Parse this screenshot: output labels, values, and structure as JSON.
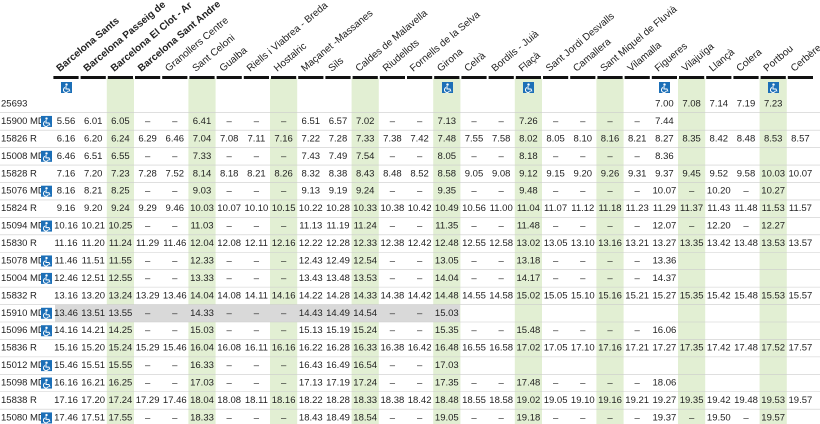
{
  "stations": [
    "Barcelona Sants",
    "Barcelona Passeig de",
    "Barcelona El Clot - Ar",
    "Barcelona Sant Andre",
    "Granollers Centre",
    "Sant Celoni",
    "Gualba",
    "Riells i Viabrea - Breda",
    "Hostalric",
    "Maçanet -Massanes",
    "Sils",
    "Caldes de Malavella",
    "Riudellots",
    "Fornells de la Selva",
    "Girona",
    "Celrà",
    "Bordils - Juià",
    "Flaçà",
    "Sant Jordi Desvalls",
    "Camallera",
    "Sant Miquel de Fluvià",
    "Vilamalla",
    "Figueres",
    "Vilajuïga",
    "Llançà",
    "Colera",
    "Portbou",
    "Cerbère"
  ],
  "trains": [
    {
      "train": "25693",
      "times": [
        null,
        null,
        null,
        null,
        null,
        null,
        null,
        null,
        null,
        null,
        null,
        null,
        null,
        null,
        null,
        null,
        null,
        null,
        null,
        null,
        null,
        null,
        "7.00",
        "7.08",
        "7.14",
        "7.19",
        "7.23",
        null
      ]
    },
    {
      "train": "15900",
      "type": "MD",
      "accessible": true,
      "times": [
        "5.56",
        "6.01",
        "6.05",
        "–",
        "–",
        "6.41",
        "–",
        "–",
        "–",
        "6.51",
        "6.57",
        "7.02",
        "–",
        "–",
        "7.13",
        "–",
        "–",
        "7.26",
        "–",
        "–",
        "–",
        "–",
        "7.44",
        null,
        null,
        null,
        null,
        null
      ]
    },
    {
      "train": "15826",
      "type": "R",
      "times": [
        "6.16",
        "6.20",
        "6.24",
        "6.29",
        "6.46",
        "7.04",
        "7.08",
        "7.11",
        "7.16",
        "7.22",
        "7.28",
        "7.33",
        "7.38",
        "7.42",
        "7.48",
        "7.55",
        "7.58",
        "8.02",
        "8.05",
        "8.10",
        "8.16",
        "8.21",
        "8.27",
        "8.35",
        "8.42",
        "8.48",
        "8.53",
        "8.57"
      ]
    },
    {
      "train": "15008",
      "type": "MD",
      "accessible": true,
      "times": [
        "6.46",
        "6.51",
        "6.55",
        "–",
        "–",
        "7.33",
        "–",
        "–",
        "–",
        "7.43",
        "7.49",
        "7.54",
        "–",
        "–",
        "8.05",
        "–",
        "–",
        "8.18",
        "–",
        "–",
        "–",
        "–",
        "8.36",
        null,
        null,
        null,
        null,
        null
      ]
    },
    {
      "train": "15828",
      "type": "R",
      "times": [
        "7.16",
        "7.20",
        "7.23",
        "7.28",
        "7.52",
        "8.14",
        "8.18",
        "8.21",
        "8.26",
        "8.32",
        "8.38",
        "8.43",
        "8.48",
        "8.52",
        "8.58",
        "9.05",
        "9.08",
        "9.12",
        "9.15",
        "9.20",
        "9.26",
        "9.31",
        "9.37",
        "9.45",
        "9.52",
        "9.58",
        "10.03",
        "10.07"
      ]
    },
    {
      "train": "15076",
      "type": "MD",
      "accessible": true,
      "times": [
        "8.16",
        "8.21",
        "8.25",
        "–",
        "–",
        "9.03",
        "–",
        "–",
        "–",
        "9.13",
        "9.19",
        "9.24",
        "–",
        "–",
        "9.35",
        "–",
        "–",
        "9.48",
        "–",
        "–",
        "–",
        "–",
        "10.07",
        "–",
        "10.20",
        "–",
        "10.27",
        null
      ]
    },
    {
      "train": "15824",
      "type": "R",
      "times": [
        "9.16",
        "9.20",
        "9.24",
        "9.29",
        "9.46",
        "10.03",
        "10.07",
        "10.10",
        "10.15",
        "10.22",
        "10.28",
        "10.33",
        "10.38",
        "10.42",
        "10.49",
        "10.56",
        "11.00",
        "11.04",
        "11.07",
        "11.12",
        "11.18",
        "11.23",
        "11.29",
        "11.37",
        "11.43",
        "11.48",
        "11.53",
        "11.57"
      ]
    },
    {
      "train": "15094",
      "type": "MD",
      "accessible": true,
      "times": [
        "10.16",
        "10.21",
        "10.25",
        "–",
        "–",
        "11.03",
        "–",
        "–",
        "–",
        "11.13",
        "11.19",
        "11.24",
        "–",
        "–",
        "11.35",
        "–",
        "–",
        "11.48",
        "–",
        "–",
        "–",
        "–",
        "12.07",
        "–",
        "12.20",
        "–",
        "12.27",
        null
      ]
    },
    {
      "train": "15830",
      "type": "R",
      "times": [
        "11.16",
        "11.20",
        "11.24",
        "11.29",
        "11.46",
        "12.04",
        "12.08",
        "12.11",
        "12.16",
        "12.22",
        "12.28",
        "12.33",
        "12.38",
        "12.42",
        "12.48",
        "12.55",
        "12.58",
        "13.02",
        "13.05",
        "13.10",
        "13.16",
        "13.21",
        "13.27",
        "13.35",
        "13.42",
        "13.48",
        "13.53",
        "13.57"
      ]
    },
    {
      "train": "15078",
      "type": "MD",
      "accessible": true,
      "times": [
        "11.46",
        "11.51",
        "11.55",
        "–",
        "–",
        "12.33",
        "–",
        "–",
        "–",
        "12.43",
        "12.49",
        "12.54",
        "–",
        "–",
        "13.05",
        "–",
        "–",
        "13.18",
        "–",
        "–",
        "–",
        "–",
        "13.36",
        null,
        null,
        null,
        null,
        null
      ]
    },
    {
      "train": "15004",
      "type": "MD",
      "accessible": true,
      "times": [
        "12.46",
        "12.51",
        "12.55",
        "–",
        "–",
        "13.33",
        "–",
        "–",
        "–",
        "13.43",
        "13.48",
        "13.53",
        "–",
        "–",
        "14.04",
        "–",
        "–",
        "14.17",
        "–",
        "–",
        "–",
        "–",
        "14.37",
        null,
        null,
        null,
        null,
        null
      ]
    },
    {
      "train": "15832",
      "type": "R",
      "times": [
        "13.16",
        "13.20",
        "13.24",
        "13.29",
        "13.46",
        "14.04",
        "14.08",
        "14.11",
        "14.16",
        "14.22",
        "14.28",
        "14.33",
        "14.38",
        "14.42",
        "14.48",
        "14.55",
        "14.58",
        "15.02",
        "15.05",
        "15.10",
        "15.16",
        "15.21",
        "15.27",
        "15.35",
        "15.42",
        "15.48",
        "15.53",
        "15.57"
      ]
    },
    {
      "train": "15910",
      "type": "MD",
      "accessible": true,
      "times": [
        "13.46",
        "13.51",
        "13.55",
        "–",
        "–",
        "14.33",
        "–",
        "–",
        "–",
        "14.43",
        "14.49",
        "14.54",
        "–",
        "–",
        "15.03",
        null,
        null,
        null,
        null,
        null,
        null,
        null,
        null,
        null,
        null,
        null,
        null,
        null
      ]
    },
    {
      "train": "15096",
      "type": "MD",
      "accessible": true,
      "times": [
        "14.16",
        "14.21",
        "14.25",
        "–",
        "–",
        "15.03",
        "–",
        "–",
        "–",
        "15.13",
        "15.19",
        "15.24",
        "–",
        "–",
        "15.35",
        "–",
        "–",
        "15.48",
        "–",
        "–",
        "–",
        "–",
        "16.06",
        null,
        null,
        null,
        null,
        null
      ]
    },
    {
      "train": "15836",
      "type": "R",
      "times": [
        "15.16",
        "15.20",
        "15.24",
        "15.29",
        "15.46",
        "16.04",
        "16.08",
        "16.11",
        "16.16",
        "16.22",
        "16.28",
        "16.33",
        "16.38",
        "16.42",
        "16.48",
        "16.55",
        "16.58",
        "17.02",
        "17.05",
        "17.10",
        "17.16",
        "17.21",
        "17.27",
        "17.35",
        "17.42",
        "17.48",
        "17.52",
        "17.57"
      ]
    },
    {
      "train": "15012",
      "type": "MD",
      "accessible": true,
      "times": [
        "15.46",
        "15.51",
        "15.55",
        "–",
        "–",
        "16.33",
        "–",
        "–",
        "–",
        "16.43",
        "16.49",
        "16.54",
        "–",
        "–",
        "17.03",
        null,
        null,
        null,
        null,
        null,
        null,
        null,
        null,
        null,
        null,
        null,
        null,
        null
      ]
    },
    {
      "train": "15098",
      "type": "MD",
      "accessible": true,
      "times": [
        "16.16",
        "16.21",
        "16.25",
        "–",
        "–",
        "17.03",
        "–",
        "–",
        "–",
        "17.13",
        "17.19",
        "17.24",
        "–",
        "–",
        "17.35",
        "–",
        "–",
        "17.48",
        "–",
        "–",
        "–",
        "–",
        "18.06",
        null,
        null,
        null,
        null,
        null
      ]
    },
    {
      "train": "15838",
      "type": "R",
      "times": [
        "17.16",
        "17.20",
        "17.24",
        "17.29",
        "17.46",
        "18.04",
        "18.08",
        "18.11",
        "18.16",
        "18.22",
        "18.28",
        "18.33",
        "18.38",
        "18.42",
        "18.48",
        "18.55",
        "18.58",
        "19.02",
        "19.05",
        "19.10",
        "19.16",
        "19.21",
        "19.27",
        "19.35",
        "19.42",
        "19.48",
        "19.53",
        "19.57"
      ]
    },
    {
      "train": "15080",
      "type": "MD",
      "accessible": true,
      "times": [
        "17.46",
        "17.51",
        "17.55",
        "–",
        "–",
        "18.33",
        "–",
        "–",
        "–",
        "18.43",
        "18.49",
        "18.54",
        "–",
        "–",
        "19.05",
        "–",
        "–",
        "19.18",
        "–",
        "–",
        "–",
        "–",
        "19.37",
        "–",
        "19.50",
        "–",
        "19.57",
        null
      ]
    }
  ]
}
